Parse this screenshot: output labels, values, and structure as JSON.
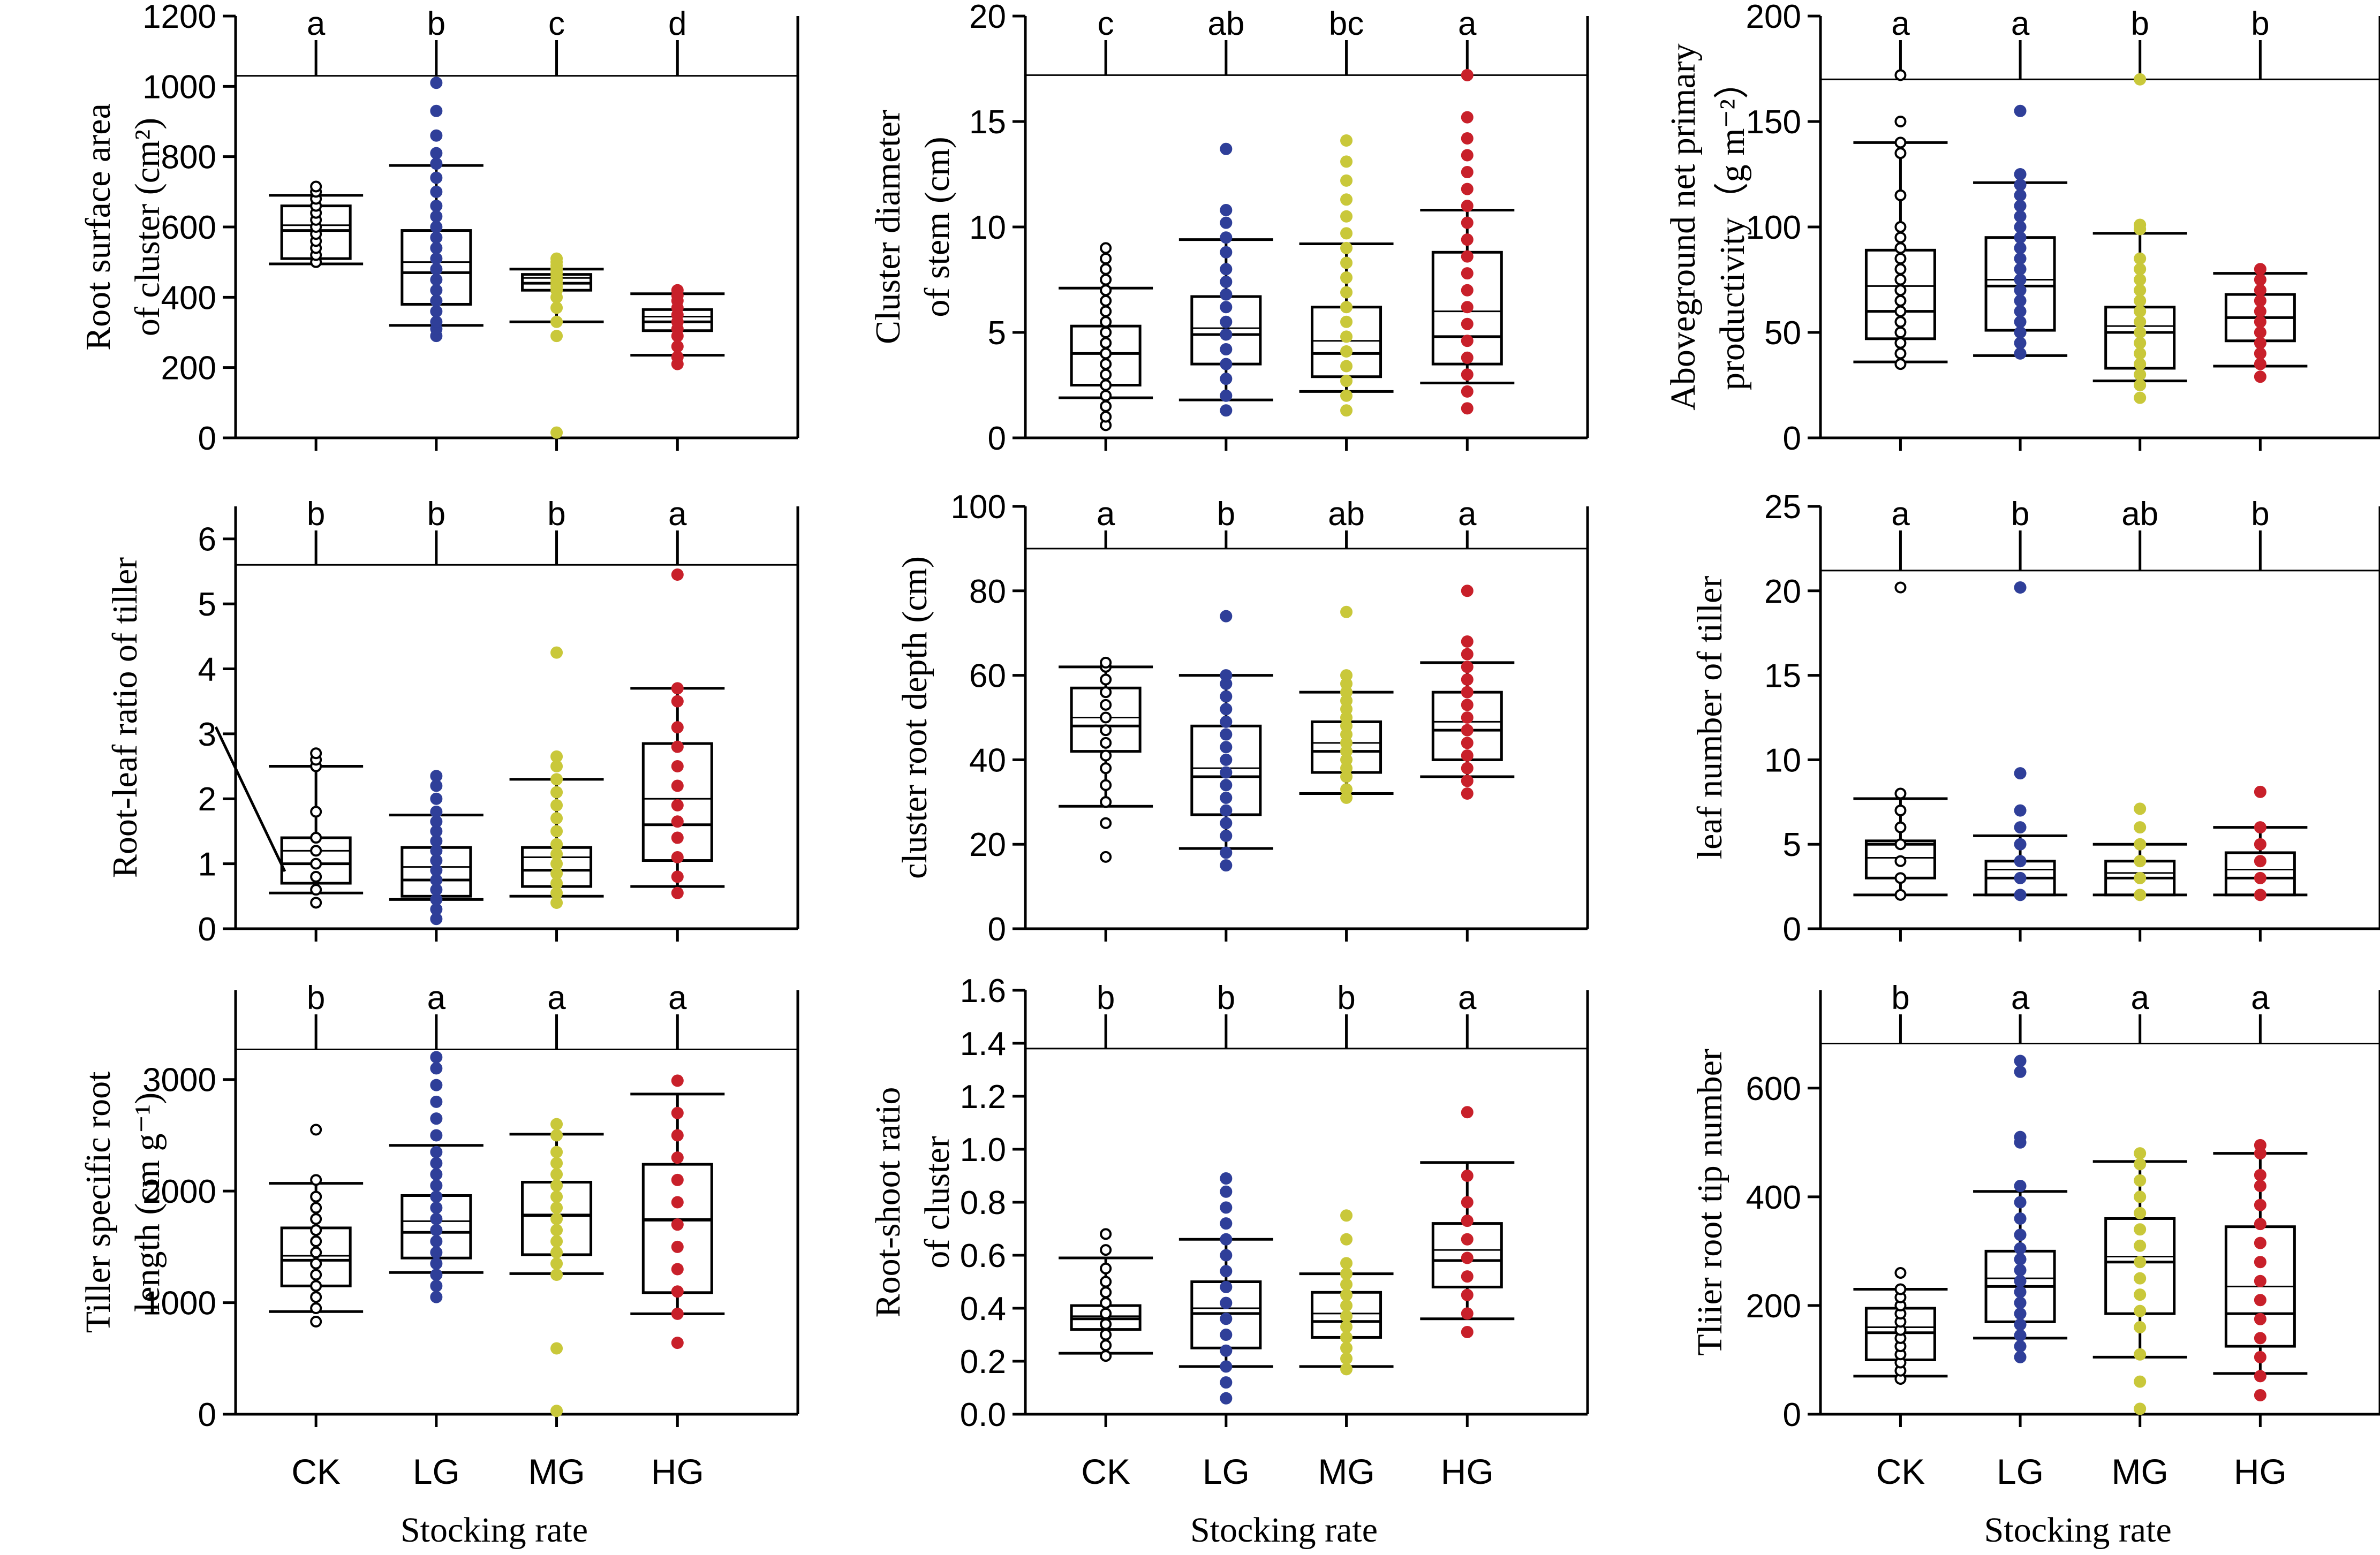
{
  "chart_data": [
    {
      "type": "box",
      "ylabel": [
        "Root surface area",
        "of cluster (cm²)"
      ],
      "yticks": [
        "0",
        "200",
        "400",
        "600",
        "800",
        "1000",
        "1200"
      ],
      "ylim": [
        0,
        1200
      ],
      "reference_line": 1030,
      "categories": [
        "CK",
        "LG",
        "MG",
        "HG"
      ],
      "xlabel": "",
      "letters": [
        "a",
        "b",
        "c",
        "d"
      ],
      "boxes": [
        {
          "q1": 510,
          "median": 590,
          "mean": 605,
          "q3": 660,
          "lo": 495,
          "hi": 690
        },
        {
          "q1": 380,
          "median": 470,
          "mean": 500,
          "q3": 590,
          "lo": 320,
          "hi": 775
        },
        {
          "q1": 420,
          "median": 440,
          "mean": 455,
          "q3": 465,
          "lo": 330,
          "hi": 480
        },
        {
          "q1": 305,
          "median": 330,
          "mean": 345,
          "q3": 365,
          "lo": 235,
          "hi": 410
        }
      ],
      "points": [
        [
          500,
          520,
          540,
          560,
          580,
          600,
          620,
          640,
          660,
          680,
          700,
          715
        ],
        [
          290,
          310,
          330,
          360,
          390,
          420,
          450,
          480,
          510,
          540,
          570,
          600,
          630,
          660,
          700,
          740,
          780,
          810,
          860,
          930,
          1010
        ],
        [
          15,
          290,
          330,
          370,
          400,
          420,
          430,
          440,
          450,
          460,
          470,
          480,
          490,
          500,
          510
        ],
        [
          210,
          230,
          260,
          290,
          310,
          330,
          350,
          370,
          390,
          405,
          420
        ]
      ]
    },
    {
      "type": "box",
      "ylabel": [
        "Cluster diameter",
        "of stem (cm)"
      ],
      "yticks": [
        "0",
        "5",
        "10",
        "15",
        "20"
      ],
      "ylim": [
        0,
        20
      ],
      "reference_line": 17.2,
      "categories": [
        "CK",
        "LG",
        "MG",
        "HG"
      ],
      "xlabel": "",
      "letters": [
        "c",
        "ab",
        "bc",
        "a"
      ],
      "boxes": [
        {
          "q1": 2.5,
          "median": 4.0,
          "mean": 4.0,
          "q3": 5.3,
          "lo": 1.9,
          "hi": 7.1
        },
        {
          "q1": 3.5,
          "median": 4.9,
          "mean": 5.2,
          "q3": 6.7,
          "lo": 1.8,
          "hi": 9.4
        },
        {
          "q1": 2.9,
          "median": 4.0,
          "mean": 4.6,
          "q3": 6.2,
          "lo": 2.2,
          "hi": 9.2
        },
        {
          "q1": 3.5,
          "median": 4.8,
          "mean": 6.0,
          "q3": 8.8,
          "lo": 2.6,
          "hi": 10.8
        }
      ],
      "points": [
        [
          0.6,
          1.0,
          1.5,
          2.0,
          2.5,
          3.0,
          3.5,
          4.0,
          4.5,
          5.0,
          5.5,
          6.0,
          6.5,
          7.0,
          7.5,
          8.0,
          8.5,
          9.0
        ],
        [
          1.3,
          2.0,
          2.8,
          3.5,
          4.2,
          4.9,
          5.5,
          6.2,
          6.8,
          7.4,
          8.0,
          8.8,
          9.5,
          10.2,
          10.8,
          13.7
        ],
        [
          1.3,
          2.0,
          2.7,
          3.4,
          4.1,
          4.8,
          5.5,
          6.2,
          6.9,
          7.6,
          8.3,
          9.0,
          9.7,
          10.5,
          11.3,
          12.2,
          13.1,
          14.1
        ],
        [
          1.4,
          2.2,
          3.0,
          3.8,
          4.6,
          5.4,
          6.2,
          7.0,
          7.8,
          8.6,
          9.4,
          10.2,
          11.0,
          11.8,
          12.6,
          13.4,
          14.2,
          15.2,
          17.2
        ]
      ]
    },
    {
      "type": "box",
      "ylabel": [
        "Aboveground net primary",
        "productivity（g m⁻²）"
      ],
      "yticks": [
        "0",
        "50",
        "100",
        "150",
        "200"
      ],
      "ylim": [
        0,
        200
      ],
      "reference_line": 170,
      "categories": [
        "CK",
        "LG",
        "MG",
        "HG"
      ],
      "xlabel": "",
      "letters": [
        "a",
        "a",
        "b",
        "b"
      ],
      "boxes": [
        {
          "q1": 47,
          "median": 60,
          "mean": 72,
          "q3": 89,
          "lo": 36,
          "hi": 140
        },
        {
          "q1": 51,
          "median": 72,
          "mean": 75,
          "q3": 95,
          "lo": 39,
          "hi": 121
        },
        {
          "q1": 33,
          "median": 50,
          "mean": 53,
          "q3": 62,
          "lo": 27,
          "hi": 97
        },
        {
          "q1": 46,
          "median": 57,
          "mean": 57,
          "q3": 68,
          "lo": 34,
          "hi": 78
        }
      ],
      "points": [
        [
          35,
          40,
          45,
          50,
          55,
          60,
          65,
          70,
          75,
          80,
          85,
          90,
          95,
          100,
          115,
          135,
          140,
          150,
          172
        ],
        [
          40,
          45,
          50,
          55,
          60,
          65,
          70,
          75,
          80,
          85,
          90,
          95,
          100,
          105,
          110,
          115,
          120,
          125,
          155
        ],
        [
          19,
          25,
          30,
          35,
          40,
          45,
          50,
          55,
          60,
          65,
          70,
          75,
          80,
          85,
          99,
          101,
          170
        ],
        [
          29,
          35,
          40,
          45,
          50,
          55,
          60,
          65,
          70,
          75,
          80
        ]
      ]
    },
    {
      "type": "box",
      "ylabel": [
        "Root-leaf ratio of tiller"
      ],
      "yticks": [
        "0",
        "1",
        "2",
        "3",
        "4",
        "5",
        "6"
      ],
      "ylim": [
        0,
        6.5
      ],
      "reference_line": 5.6,
      "categories": [
        "CK",
        "LG",
        "MG",
        "HG"
      ],
      "xlabel": "",
      "letters": [
        "b",
        "b",
        "b",
        "a"
      ],
      "boxes": [
        {
          "q1": 0.7,
          "median": 1.0,
          "mean": 1.2,
          "q3": 1.4,
          "lo": 0.55,
          "hi": 2.5
        },
        {
          "q1": 0.5,
          "median": 0.75,
          "mean": 0.95,
          "q3": 1.25,
          "lo": 0.45,
          "hi": 1.75
        },
        {
          "q1": 0.65,
          "median": 0.9,
          "mean": 1.1,
          "q3": 1.25,
          "lo": 0.5,
          "hi": 2.3
        },
        {
          "q1": 1.05,
          "median": 1.6,
          "mean": 2.0,
          "q3": 2.85,
          "lo": 0.65,
          "hi": 3.7
        }
      ],
      "points": [
        [
          0.4,
          0.6,
          0.8,
          1.0,
          1.2,
          1.4,
          1.8,
          2.5,
          2.6,
          2.7
        ],
        [
          0.15,
          0.3,
          0.45,
          0.6,
          0.75,
          0.9,
          1.05,
          1.2,
          1.35,
          1.5,
          1.65,
          1.8,
          2.0,
          2.2,
          2.35
        ],
        [
          0.4,
          0.55,
          0.7,
          0.85,
          1.0,
          1.15,
          1.3,
          1.5,
          1.7,
          1.9,
          2.1,
          2.3,
          2.5,
          2.65,
          4.25
        ],
        [
          0.55,
          0.8,
          1.1,
          1.4,
          1.65,
          1.9,
          2.2,
          2.5,
          2.8,
          3.1,
          3.5,
          3.7,
          5.45
        ]
      ]
    },
    {
      "type": "box",
      "ylabel": [
        "cluster root depth (cm)"
      ],
      "yticks": [
        "0",
        "20",
        "40",
        "60",
        "80",
        "100"
      ],
      "ylim": [
        0,
        100
      ],
      "reference_line": 90,
      "categories": [
        "CK",
        "LG",
        "MG",
        "HG"
      ],
      "xlabel": "",
      "letters": [
        "a",
        "b",
        "ab",
        "a"
      ],
      "boxes": [
        {
          "q1": 42,
          "median": 48,
          "mean": 50,
          "q3": 57,
          "lo": 29,
          "hi": 62
        },
        {
          "q1": 27,
          "median": 36,
          "mean": 38,
          "q3": 48,
          "lo": 19,
          "hi": 60
        },
        {
          "q1": 37,
          "median": 42,
          "mean": 44,
          "q3": 49,
          "lo": 32,
          "hi": 56
        },
        {
          "q1": 40,
          "median": 47,
          "mean": 49,
          "q3": 56,
          "lo": 36,
          "hi": 63
        }
      ],
      "points": [
        [
          17,
          25,
          30,
          34,
          38,
          41,
          44,
          47,
          50,
          53,
          56,
          59,
          62,
          63
        ],
        [
          15,
          18,
          22,
          25,
          28,
          31,
          34,
          37,
          40,
          43,
          46,
          49,
          52,
          55,
          58,
          60,
          74
        ],
        [
          31,
          33,
          36,
          38,
          40,
          42,
          44,
          46,
          48,
          50,
          52,
          54,
          56,
          58,
          60,
          75
        ],
        [
          32,
          35,
          38,
          41,
          44,
          47,
          50,
          53,
          56,
          59,
          62,
          65,
          68,
          80
        ]
      ]
    },
    {
      "type": "box",
      "ylabel": [
        "leaf number of tiller"
      ],
      "yticks": [
        "0",
        "5",
        "10",
        "15",
        "20",
        "25"
      ],
      "ylim": [
        0,
        25
      ],
      "reference_line": 21.2,
      "categories": [
        "CK",
        "LG",
        "MG",
        "HG"
      ],
      "xlabel": "",
      "letters": [
        "a",
        "b",
        "ab",
        "b"
      ],
      "boxes": [
        {
          "q1": 3,
          "median": 5,
          "mean": 4.2,
          "q3": 5.2,
          "lo": 2,
          "hi": 7.7
        },
        {
          "q1": 2,
          "median": 3,
          "mean": 3.5,
          "q3": 4,
          "lo": 2,
          "hi": 5.5
        },
        {
          "q1": 2,
          "median": 3,
          "mean": 3.3,
          "q3": 4,
          "lo": 2,
          "hi": 5
        },
        {
          "q1": 2,
          "median": 3,
          "mean": 3.5,
          "q3": 4.5,
          "lo": 2,
          "hi": 6
        }
      ],
      "points": [
        [
          2,
          3,
          4,
          5,
          6,
          7,
          8,
          20.2
        ],
        [
          2,
          3,
          4,
          5,
          6,
          7,
          9.2,
          20.2
        ],
        [
          2,
          3,
          4,
          5,
          6,
          7.1
        ],
        [
          2,
          3,
          4,
          5,
          6,
          8.1
        ]
      ]
    },
    {
      "type": "box",
      "ylabel": [
        "Tiller specific root",
        "length (cm g⁻¹)"
      ],
      "yticks": [
        "0",
        "1000",
        "2000",
        "3000"
      ],
      "ylim": [
        0,
        3800
      ],
      "reference_line": 3270,
      "categories": [
        "CK",
        "LG",
        "MG",
        "HG"
      ],
      "xlabel": "Stocking rate",
      "letters": [
        "b",
        "a",
        "a",
        "a"
      ],
      "boxes": [
        {
          "q1": 1150,
          "median": 1380,
          "mean": 1420,
          "q3": 1670,
          "lo": 920,
          "hi": 2070
        },
        {
          "q1": 1400,
          "median": 1630,
          "mean": 1730,
          "q3": 1960,
          "lo": 1270,
          "hi": 2410
        },
        {
          "q1": 1430,
          "median": 1780,
          "mean": 1790,
          "q3": 2080,
          "lo": 1260,
          "hi": 2510
        },
        {
          "q1": 1090,
          "median": 1740,
          "mean": 1750,
          "q3": 2240,
          "lo": 900,
          "hi": 2870
        }
      ],
      "points": [
        [
          830,
          950,
          1050,
          1150,
          1250,
          1350,
          1450,
          1550,
          1650,
          1750,
          1850,
          1950,
          2100,
          2550
        ],
        [
          1050,
          1150,
          1250,
          1350,
          1450,
          1550,
          1650,
          1750,
          1850,
          1950,
          2050,
          2150,
          2250,
          2350,
          2500,
          2650,
          2800,
          2950,
          3100,
          3200
        ],
        [
          30,
          590,
          1250,
          1350,
          1450,
          1550,
          1650,
          1750,
          1850,
          1950,
          2050,
          2150,
          2250,
          2350,
          2500,
          2600
        ],
        [
          640,
          900,
          1100,
          1300,
          1500,
          1700,
          1900,
          2100,
          2300,
          2500,
          2700,
          2990
        ]
      ]
    },
    {
      "type": "box",
      "ylabel": [
        "Root-shoot ratio",
        "of cluster"
      ],
      "yticks": [
        "0.0",
        "0.2",
        "0.4",
        "0.6",
        "0.8",
        "1.0",
        "1.2",
        "1.4",
        "1.6"
      ],
      "ylim": [
        0,
        1.6
      ],
      "reference_line": 1.38,
      "categories": [
        "CK",
        "LG",
        "MG",
        "HG"
      ],
      "xlabel": "Stocking rate",
      "letters": [
        "b",
        "b",
        "b",
        "a"
      ],
      "boxes": [
        {
          "q1": 0.32,
          "median": 0.36,
          "mean": 0.37,
          "q3": 0.41,
          "lo": 0.23,
          "hi": 0.59
        },
        {
          "q1": 0.25,
          "median": 0.38,
          "mean": 0.4,
          "q3": 0.5,
          "lo": 0.18,
          "hi": 0.66
        },
        {
          "q1": 0.29,
          "median": 0.35,
          "mean": 0.38,
          "q3": 0.46,
          "lo": 0.18,
          "hi": 0.53
        },
        {
          "q1": 0.48,
          "median": 0.58,
          "mean": 0.62,
          "q3": 0.72,
          "lo": 0.36,
          "hi": 0.95
        }
      ],
      "points": [
        [
          0.22,
          0.26,
          0.3,
          0.34,
          0.38,
          0.42,
          0.46,
          0.5,
          0.55,
          0.62,
          0.68
        ],
        [
          0.06,
          0.12,
          0.18,
          0.24,
          0.3,
          0.36,
          0.42,
          0.48,
          0.54,
          0.6,
          0.66,
          0.72,
          0.78,
          0.84,
          0.89
        ],
        [
          0.17,
          0.21,
          0.25,
          0.29,
          0.33,
          0.37,
          0.41,
          0.45,
          0.49,
          0.53,
          0.57,
          0.66,
          0.75
        ],
        [
          0.31,
          0.38,
          0.45,
          0.52,
          0.59,
          0.66,
          0.73,
          0.8,
          0.9,
          1.14
        ]
      ]
    },
    {
      "type": "box",
      "ylabel": [
        "Tliier root tip number"
      ],
      "yticks": [
        "0",
        "200",
        "400",
        "600"
      ],
      "ylim": [
        0,
        780
      ],
      "reference_line": 682,
      "categories": [
        "CK",
        "LG",
        "MG",
        "HG"
      ],
      "xlabel": "Stocking rate",
      "letters": [
        "b",
        "a",
        "a",
        "a"
      ],
      "boxes": [
        {
          "q1": 100,
          "median": 150,
          "mean": 160,
          "q3": 195,
          "lo": 70,
          "hi": 230
        },
        {
          "q1": 170,
          "median": 235,
          "mean": 250,
          "q3": 300,
          "lo": 140,
          "hi": 410
        },
        {
          "q1": 185,
          "median": 280,
          "mean": 290,
          "q3": 360,
          "lo": 105,
          "hi": 465
        },
        {
          "q1": 125,
          "median": 185,
          "mean": 235,
          "q3": 345,
          "lo": 75,
          "hi": 480
        }
      ],
      "points": [
        [
          65,
          80,
          95,
          110,
          125,
          140,
          155,
          170,
          185,
          200,
          215,
          230,
          260
        ],
        [
          105,
          125,
          145,
          165,
          185,
          205,
          225,
          245,
          265,
          285,
          305,
          330,
          360,
          390,
          420,
          500,
          510,
          630,
          650
        ],
        [
          10,
          60,
          110,
          160,
          190,
          220,
          250,
          280,
          310,
          340,
          370,
          400,
          430,
          460,
          480
        ],
        [
          35,
          70,
          105,
          140,
          175,
          210,
          245,
          280,
          315,
          350,
          385,
          420,
          440,
          480,
          495
        ]
      ]
    }
  ],
  "colors": {
    "CK": "#000000",
    "LG": "#2f3f99",
    "MG": "#c9c83a",
    "HG": "#c8202a"
  }
}
